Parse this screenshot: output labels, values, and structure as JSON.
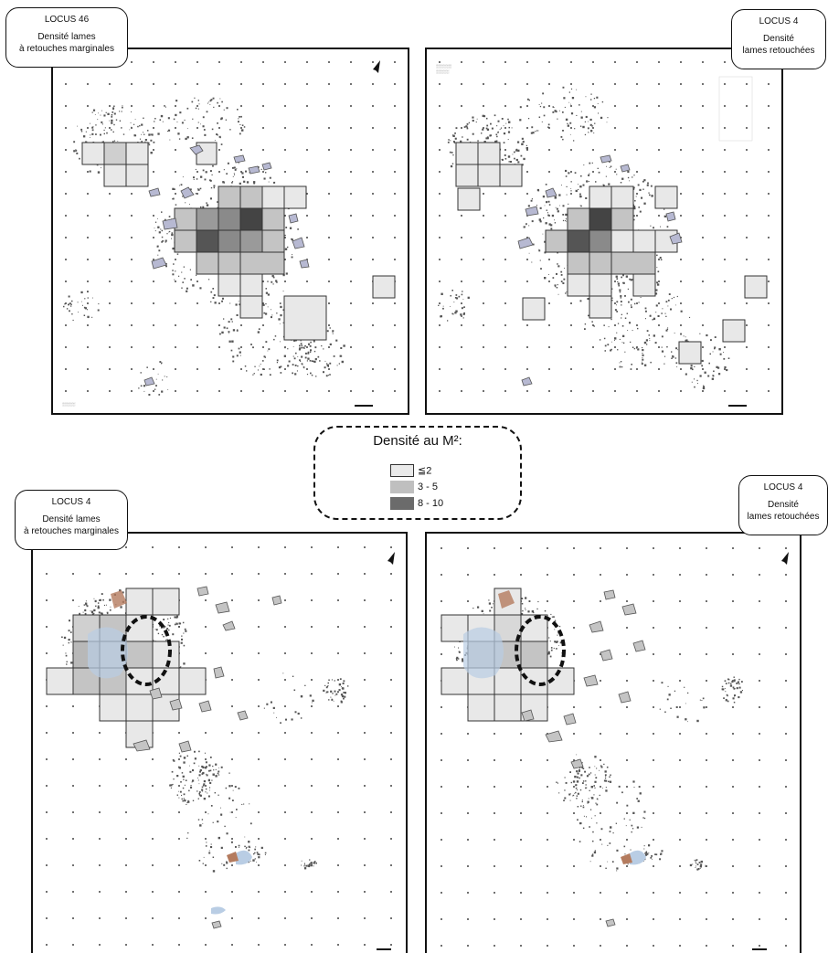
{
  "panels": [
    {
      "id": "tl",
      "locus": "LOCUS 46",
      "title_line1": "Densité lames",
      "title_line2": "à retouches marginales"
    },
    {
      "id": "tr",
      "locus": "LOCUS 4",
      "title_line1": "Densité",
      "title_line2": "lames retouchées"
    },
    {
      "id": "bl",
      "locus": "LOCUS 4",
      "title_line1": "Densité lames",
      "title_line2": "à retouches marginales"
    },
    {
      "id": "br",
      "locus": "LOCUS 4",
      "title_line1": "Densité",
      "title_line2": "lames retouchées"
    }
  ],
  "legend": {
    "title": "Densité au M²:",
    "items": [
      {
        "label": "≦2",
        "color": "#eaeaea"
      },
      {
        "label": "3 - 5",
        "color": "#bfbfbf"
      },
      {
        "label": "8 - 10",
        "color": "#6b6b6b"
      }
    ]
  },
  "colors": {
    "light": "#e8e8e8",
    "mid": "#c4c4c4",
    "dark": "#6a6a6a",
    "darkest": "#2a2a2a",
    "blob": "#b7b9d2",
    "blue": "#b9cde4",
    "brown": "#b47b5e"
  },
  "icons": {
    "north_arrow": "north-arrow-icon"
  }
}
